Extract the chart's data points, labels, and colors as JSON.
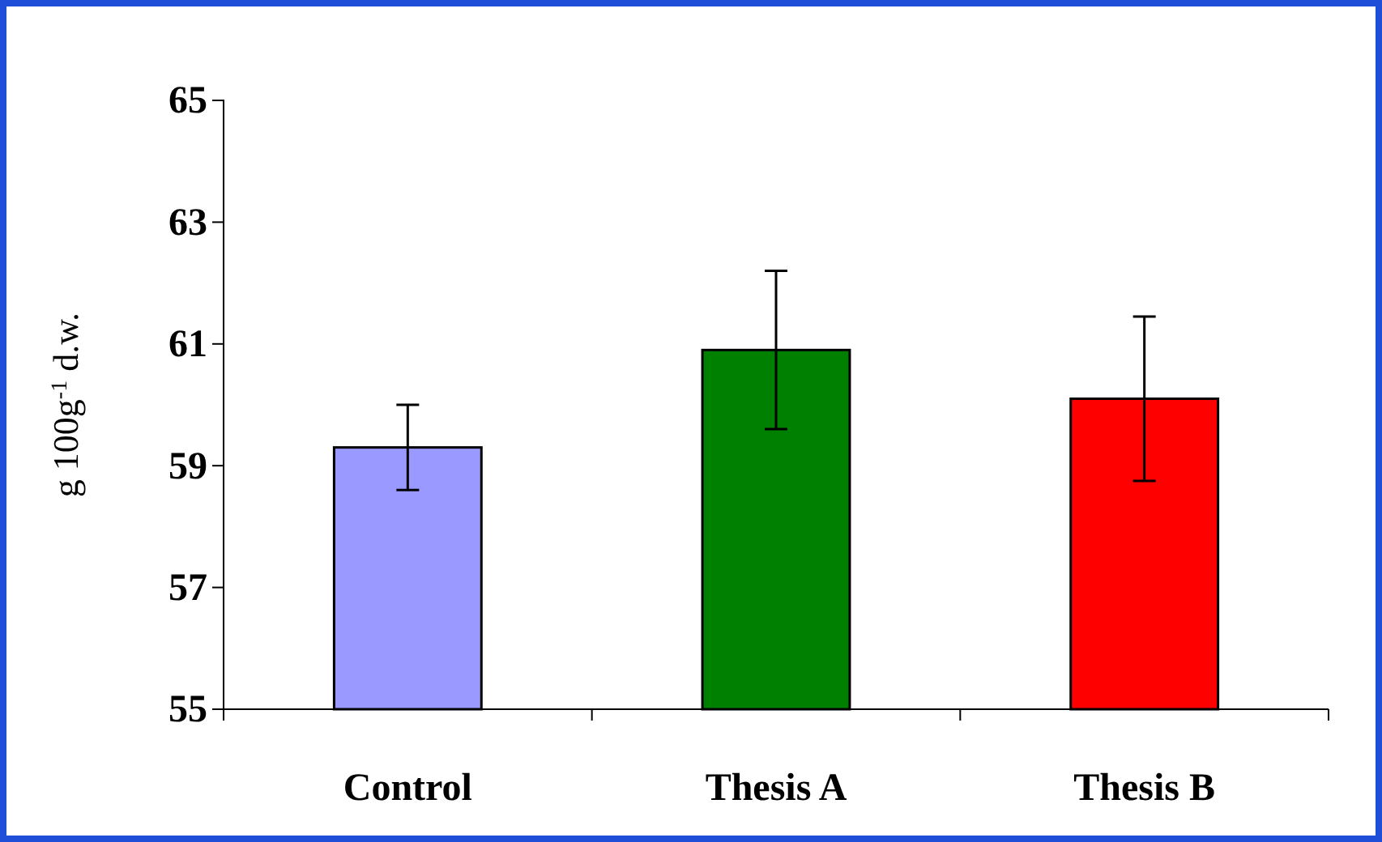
{
  "chart_data": {
    "type": "bar",
    "ylabel": "g 100g$^{-1}$ d.w.",
    "categories": [
      "Control",
      "Thesis A",
      "Thesis B"
    ],
    "values": [
      59.3,
      60.9,
      60.1
    ],
    "colors": [
      "#9999ff",
      "#008000",
      "#ff0000"
    ],
    "errors": [
      0.7,
      1.3,
      1.35
    ],
    "ylim": [
      55,
      65
    ],
    "yticks": [
      55,
      57,
      59,
      61,
      63,
      65
    ],
    "grid": false
  }
}
